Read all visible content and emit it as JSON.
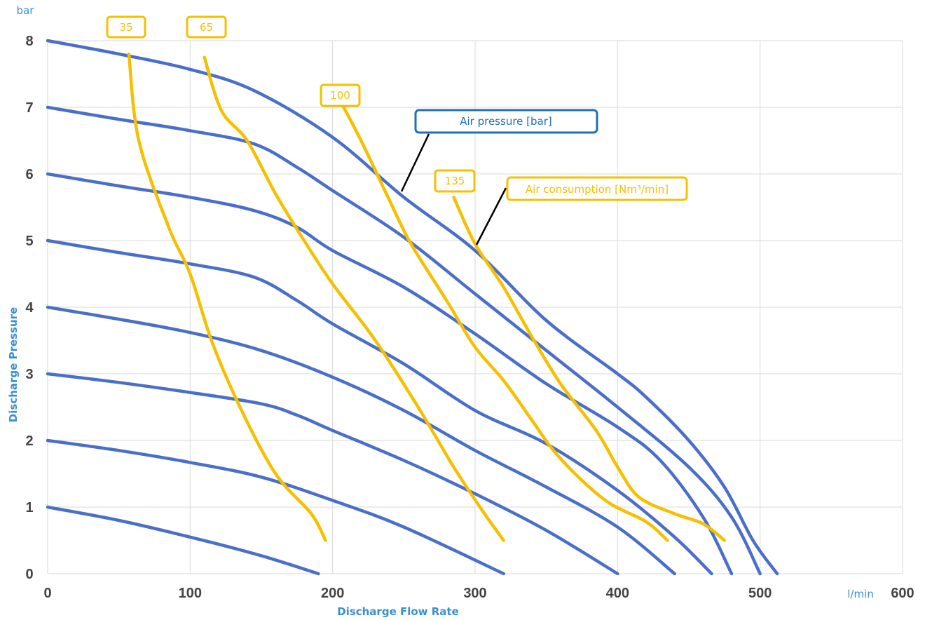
{
  "chart_data": {
    "type": "line",
    "xlabel": "Discharge Flow Rate",
    "ylabel": "Discharge Pressure",
    "x_unit": "l/min",
    "y_unit": "bar",
    "xlim": [
      0,
      600
    ],
    "ylim": [
      0,
      8
    ],
    "x_ticks": [
      "0",
      "100",
      "200",
      "300",
      "400",
      "500",
      "600"
    ],
    "y_ticks": [
      "0",
      "1",
      "2",
      "3",
      "4",
      "5",
      "6",
      "7",
      "8"
    ],
    "grid": true,
    "legend": [
      {
        "label": "Air pressure [bar]",
        "color": "#1f6fb5"
      },
      {
        "label": "Air consumption [Nm³/min]",
        "color": "#f5c000"
      }
    ],
    "series": [
      {
        "group": "air-pressure",
        "points": [
          [
            0,
            1
          ],
          [
            50,
            0.8
          ],
          [
            100,
            0.55
          ],
          [
            150,
            0.27
          ],
          [
            190,
            0
          ]
        ]
      },
      {
        "group": "air-pressure",
        "points": [
          [
            0,
            2
          ],
          [
            50,
            1.85
          ],
          [
            100,
            1.67
          ],
          [
            150,
            1.45
          ],
          [
            200,
            1.1
          ],
          [
            250,
            0.7
          ],
          [
            320,
            0
          ]
        ]
      },
      {
        "group": "air-pressure",
        "points": [
          [
            0,
            3
          ],
          [
            50,
            2.87
          ],
          [
            100,
            2.72
          ],
          [
            150,
            2.55
          ],
          [
            175,
            2.38
          ],
          [
            200,
            2.15
          ],
          [
            250,
            1.7
          ],
          [
            300,
            1.2
          ],
          [
            350,
            0.65
          ],
          [
            400,
            0
          ]
        ]
      },
      {
        "group": "air-pressure",
        "points": [
          [
            0,
            4
          ],
          [
            50,
            3.82
          ],
          [
            100,
            3.62
          ],
          [
            150,
            3.35
          ],
          [
            200,
            2.95
          ],
          [
            250,
            2.45
          ],
          [
            300,
            1.85
          ],
          [
            350,
            1.3
          ],
          [
            400,
            0.7
          ],
          [
            440,
            0
          ]
        ]
      },
      {
        "group": "air-pressure",
        "points": [
          [
            0,
            5
          ],
          [
            50,
            4.82
          ],
          [
            100,
            4.65
          ],
          [
            145,
            4.45
          ],
          [
            175,
            4.1
          ],
          [
            200,
            3.75
          ],
          [
            250,
            3.15
          ],
          [
            300,
            2.45
          ],
          [
            350,
            1.95
          ],
          [
            400,
            1.25
          ],
          [
            440,
            0.55
          ],
          [
            466,
            0
          ]
        ]
      },
      {
        "group": "air-pressure",
        "points": [
          [
            0,
            6
          ],
          [
            50,
            5.82
          ],
          [
            100,
            5.65
          ],
          [
            145,
            5.45
          ],
          [
            175,
            5.2
          ],
          [
            200,
            4.85
          ],
          [
            250,
            4.3
          ],
          [
            300,
            3.6
          ],
          [
            350,
            2.85
          ],
          [
            400,
            2.2
          ],
          [
            430,
            1.7
          ],
          [
            460,
            0.85
          ],
          [
            480,
            0
          ]
        ]
      },
      {
        "group": "air-pressure",
        "points": [
          [
            0,
            7
          ],
          [
            50,
            6.82
          ],
          [
            100,
            6.65
          ],
          [
            145,
            6.45
          ],
          [
            175,
            6.1
          ],
          [
            200,
            5.75
          ],
          [
            250,
            5.05
          ],
          [
            300,
            4.2
          ],
          [
            350,
            3.35
          ],
          [
            400,
            2.5
          ],
          [
            450,
            1.6
          ],
          [
            480,
            0.85
          ],
          [
            500,
            0
          ]
        ]
      },
      {
        "group": "air-pressure",
        "points": [
          [
            0,
            8
          ],
          [
            50,
            7.8
          ],
          [
            100,
            7.57
          ],
          [
            145,
            7.25
          ],
          [
            200,
            6.55
          ],
          [
            250,
            5.65
          ],
          [
            300,
            4.85
          ],
          [
            350,
            3.8
          ],
          [
            400,
            3
          ],
          [
            420,
            2.65
          ],
          [
            450,
            2
          ],
          [
            475,
            1.3
          ],
          [
            495,
            0.5
          ],
          [
            512,
            0
          ]
        ]
      },
      {
        "group": "air-consumption",
        "name": "35",
        "points": [
          [
            57,
            7.8
          ],
          [
            64,
            6.5
          ],
          [
            85,
            5.2
          ],
          [
            100,
            4.5
          ],
          [
            115,
            3.5
          ],
          [
            135,
            2.5
          ],
          [
            160,
            1.5
          ],
          [
            185,
            0.9
          ],
          [
            195,
            0.5
          ]
        ]
      },
      {
        "group": "air-consumption",
        "name": "65",
        "points": [
          [
            110,
            7.75
          ],
          [
            122,
            6.95
          ],
          [
            140,
            6.5
          ],
          [
            160,
            5.7
          ],
          [
            180,
            5
          ],
          [
            200,
            4.35
          ],
          [
            230,
            3.5
          ],
          [
            260,
            2.5
          ],
          [
            285,
            1.6
          ],
          [
            305,
            0.95
          ],
          [
            320,
            0.5
          ]
        ]
      },
      {
        "group": "air-consumption",
        "name": "100",
        "points": [
          [
            206,
            7.07
          ],
          [
            220,
            6.5
          ],
          [
            240,
            5.6
          ],
          [
            255,
            4.95
          ],
          [
            280,
            4.1
          ],
          [
            300,
            3.4
          ],
          [
            320,
            2.9
          ],
          [
            340,
            2.3
          ],
          [
            355,
            1.85
          ],
          [
            375,
            1.4
          ],
          [
            395,
            1.05
          ],
          [
            420,
            0.78
          ],
          [
            435,
            0.5
          ]
        ]
      },
      {
        "group": "air-consumption",
        "name": "135",
        "points": [
          [
            285,
            5.65
          ],
          [
            300,
            4.95
          ],
          [
            320,
            4.3
          ],
          [
            340,
            3.55
          ],
          [
            360,
            2.85
          ],
          [
            385,
            2.15
          ],
          [
            400,
            1.6
          ],
          [
            415,
            1.15
          ],
          [
            440,
            0.9
          ],
          [
            460,
            0.75
          ],
          [
            475,
            0.5
          ]
        ]
      }
    ],
    "annotations": [
      "35",
      "65",
      "100",
      "135"
    ]
  }
}
